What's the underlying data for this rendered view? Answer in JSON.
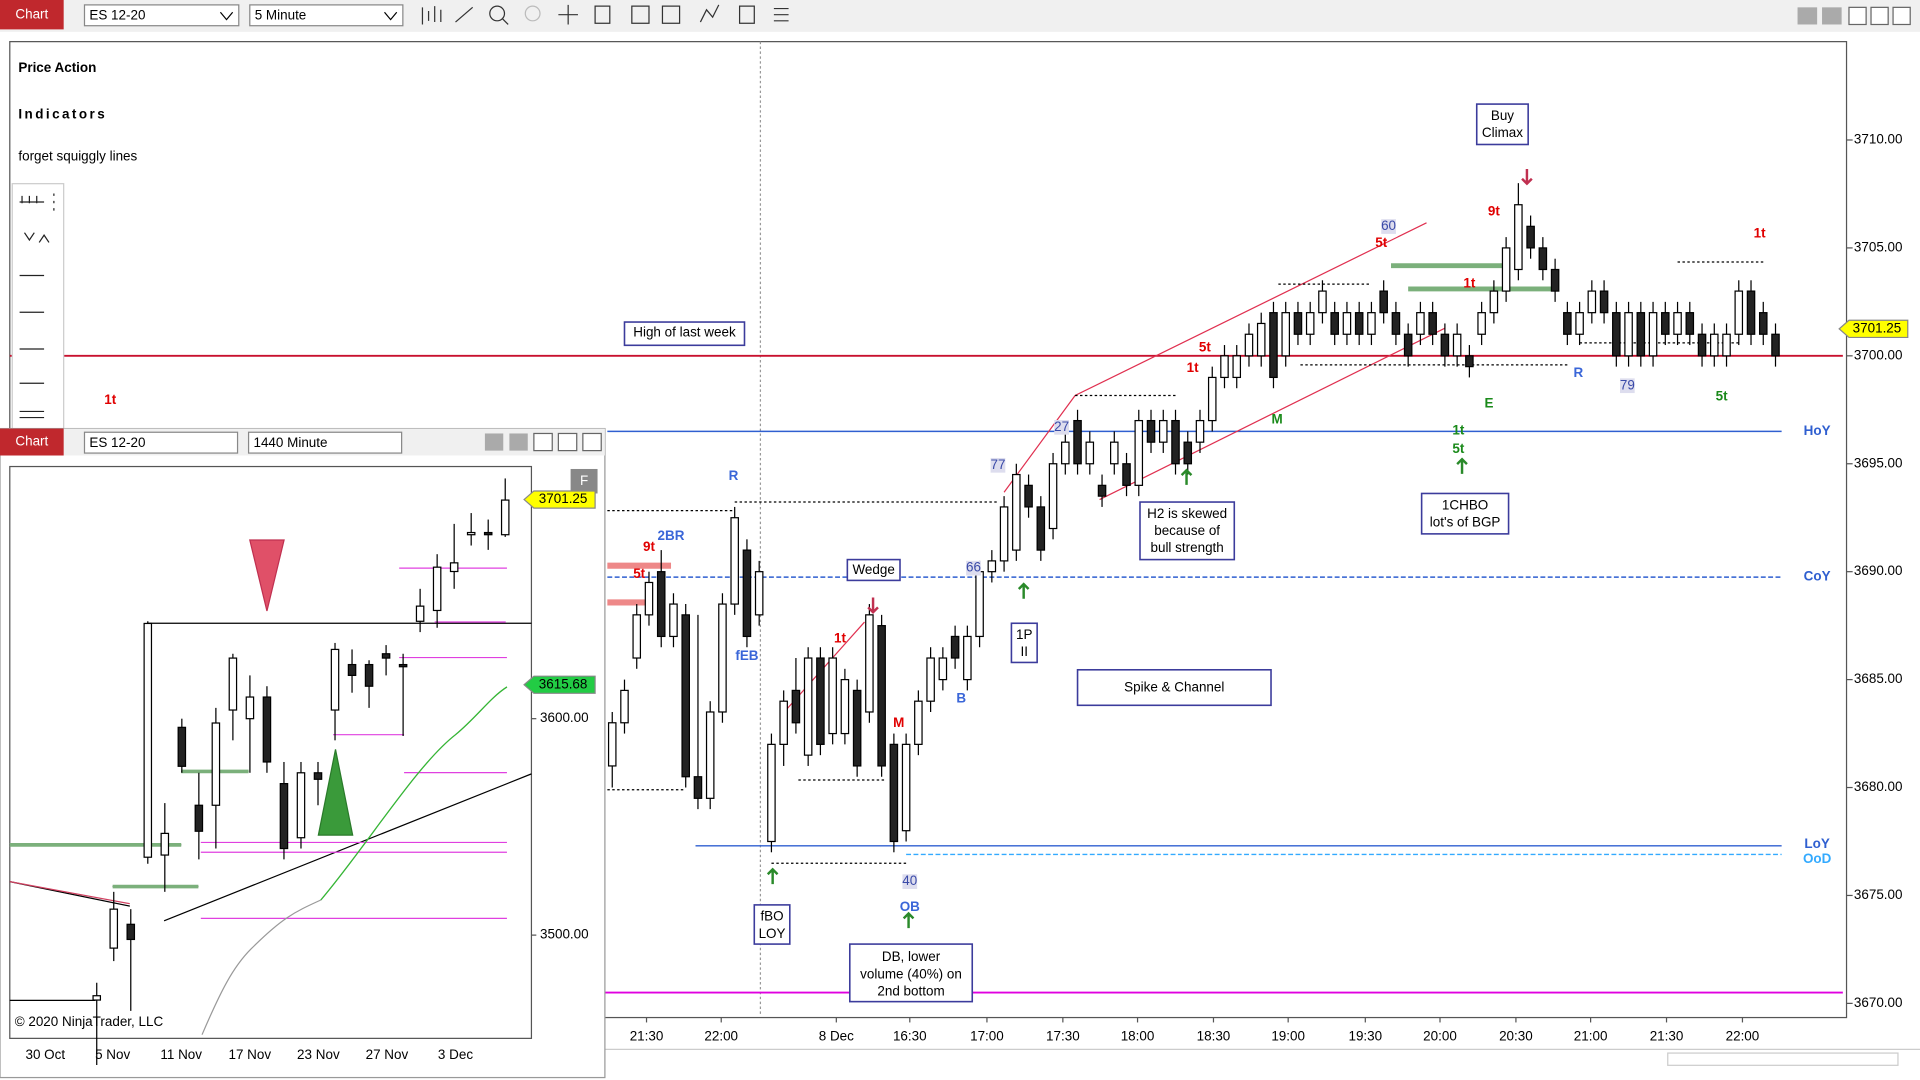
{
  "toolbar": {
    "tab": "Chart",
    "instrument": "ES 12-20",
    "interval": "5 Minute"
  },
  "branding": {
    "title_1": "Price Action",
    "title_2": "Indicators",
    "tagline": "forget squiggly lines"
  },
  "main_chart": {
    "type": "candlestick",
    "candles": [
      [
        3681,
        3683.5,
        3680,
        3683
      ],
      [
        3683,
        3685,
        3682.5,
        3684.5
      ],
      [
        3686,
        3688.5,
        3685.5,
        3688
      ],
      [
        3688,
        3690,
        3687.5,
        3689.5
      ],
      [
        3690,
        3691,
        3686.5,
        3687
      ],
      [
        3687,
        3689,
        3686.5,
        3688.5
      ],
      [
        3688,
        3688.5,
        3680,
        3680.5
      ],
      [
        3680.5,
        3688,
        3679,
        3679.5
      ],
      [
        3679.5,
        3684,
        3679,
        3683.5
      ],
      [
        3683.5,
        3689,
        3683,
        3688.5
      ],
      [
        3688.5,
        3693,
        3688,
        3692.5
      ],
      [
        3691,
        3691.5,
        3686.5,
        3687
      ],
      [
        3688,
        3690.5,
        3687.5,
        3690
      ],
      [
        3677.5,
        3682.5,
        3677,
        3682
      ],
      [
        3682,
        3684.5,
        3681,
        3684
      ],
      [
        3684.5,
        3686,
        3682.5,
        3683
      ],
      [
        3681.5,
        3686.5,
        3681,
        3686
      ],
      [
        3686,
        3686.5,
        3681.5,
        3682
      ],
      [
        3682.5,
        3686.5,
        3682,
        3686
      ],
      [
        3682.5,
        3685.5,
        3682,
        3685
      ],
      [
        3684.5,
        3685,
        3680.5,
        3681
      ],
      [
        3683.5,
        3688.5,
        3683,
        3688
      ],
      [
        3687.5,
        3688,
        3680.5,
        3681
      ],
      [
        3682,
        3682.5,
        3677,
        3677.5
      ],
      [
        3678,
        3682.5,
        3677.5,
        3682
      ],
      [
        3682,
        3684.5,
        3681.5,
        3684
      ],
      [
        3684,
        3686.5,
        3683.5,
        3686
      ],
      [
        3685,
        3686.5,
        3684.5,
        3686
      ],
      [
        3687,
        3687.5,
        3685.5,
        3686
      ],
      [
        3685,
        3687.5,
        3684.5,
        3687
      ],
      [
        3687,
        3690.5,
        3686.5,
        3690
      ],
      [
        3690,
        3691,
        3689.5,
        3690.5
      ],
      [
        3690.5,
        3693.5,
        3690,
        3693
      ],
      [
        3691,
        3695,
        3690.5,
        3694.5
      ],
      [
        3694,
        3694.5,
        3692.5,
        3693
      ],
      [
        3693,
        3693.5,
        3690.5,
        3691
      ],
      [
        3692,
        3695.5,
        3691.5,
        3695
      ],
      [
        3695,
        3696.5,
        3694.5,
        3696
      ],
      [
        3697,
        3697.5,
        3694.5,
        3695
      ],
      [
        3695,
        3696.5,
        3694.5,
        3696
      ],
      [
        3694,
        3694.5,
        3693,
        3693.5
      ],
      [
        3695,
        3696.5,
        3694.5,
        3696
      ],
      [
        3695,
        3695.5,
        3693.5,
        3694
      ],
      [
        3694,
        3697.5,
        3693.5,
        3697
      ],
      [
        3697,
        3697.5,
        3695.5,
        3696
      ],
      [
        3696,
        3697.5,
        3695.5,
        3697
      ],
      [
        3697,
        3697.5,
        3694.5,
        3695
      ],
      [
        3696,
        3696.5,
        3694.5,
        3695
      ],
      [
        3696,
        3697.5,
        3695.5,
        3697
      ],
      [
        3697,
        3699.5,
        3696.5,
        3699
      ],
      [
        3699,
        3700.5,
        3698.5,
        3700
      ],
      [
        3699,
        3700.5,
        3698.5,
        3700
      ],
      [
        3700,
        3701.5,
        3699.5,
        3701
      ],
      [
        3700,
        3702,
        3699.5,
        3701.5
      ],
      [
        3702,
        3702.5,
        3698.5,
        3699
      ],
      [
        3700,
        3702.5,
        3699.5,
        3702
      ],
      [
        3702,
        3702.5,
        3700.5,
        3701
      ],
      [
        3701,
        3702.5,
        3700.5,
        3702
      ],
      [
        3702,
        3703.5,
        3701.5,
        3703
      ],
      [
        3702,
        3702.5,
        3700.5,
        3701
      ],
      [
        3701,
        3702.5,
        3700.5,
        3702
      ],
      [
        3702,
        3702.5,
        3700.5,
        3701
      ],
      [
        3701,
        3702.5,
        3700.5,
        3702
      ],
      [
        3703,
        3703.5,
        3701.5,
        3702
      ],
      [
        3702,
        3702.5,
        3700.5,
        3701
      ],
      [
        3701,
        3701.5,
        3699.5,
        3700
      ],
      [
        3701,
        3702.5,
        3700.5,
        3702
      ],
      [
        3702,
        3702.5,
        3700.5,
        3701
      ],
      [
        3701,
        3701.5,
        3699.5,
        3700
      ],
      [
        3700,
        3701.5,
        3699.5,
        3701
      ],
      [
        3700,
        3700.5,
        3699,
        3699.5
      ],
      [
        3701,
        3702.5,
        3700.5,
        3702
      ],
      [
        3702,
        3703.5,
        3701.5,
        3703
      ],
      [
        3703,
        3705.5,
        3702.5,
        3705
      ],
      [
        3704,
        3708,
        3703.5,
        3707
      ],
      [
        3706,
        3706.5,
        3704.5,
        3705
      ],
      [
        3705,
        3705.5,
        3703.5,
        3704
      ],
      [
        3704,
        3704.5,
        3702.5,
        3703
      ],
      [
        3702,
        3702.5,
        3700.5,
        3701
      ],
      [
        3701,
        3702.5,
        3700.5,
        3702
      ],
      [
        3702,
        3703.5,
        3701.5,
        3703
      ],
      [
        3703,
        3703.5,
        3701.5,
        3702
      ],
      [
        3702,
        3702.5,
        3699.5,
        3700
      ],
      [
        3700,
        3702.5,
        3699.5,
        3702
      ],
      [
        3702,
        3702.5,
        3699.5,
        3700
      ],
      [
        3700,
        3702.5,
        3699.5,
        3702
      ],
      [
        3702,
        3702.5,
        3700.5,
        3701
      ],
      [
        3701,
        3702.5,
        3700.5,
        3702
      ],
      [
        3702,
        3702.5,
        3700.5,
        3701
      ],
      [
        3701,
        3701.5,
        3699.5,
        3700
      ],
      [
        3700,
        3701.5,
        3699.5,
        3701
      ],
      [
        3700,
        3701.5,
        3699.5,
        3701
      ],
      [
        3701,
        3703.5,
        3700.5,
        3703
      ],
      [
        3703,
        3703.5,
        3700.5,
        3701
      ],
      [
        3702,
        3702.5,
        3700.5,
        3701
      ],
      [
        3701,
        3701.5,
        3699.5,
        3700
      ]
    ],
    "ylim": [
      3669.4,
      3714.5
    ],
    "yticks": [
      {
        "value": 3670,
        "label": "3670.00"
      },
      {
        "value": 3675,
        "label": "3675.00"
      },
      {
        "value": 3680,
        "label": "3680.00"
      },
      {
        "value": 3685,
        "label": "3685.00"
      },
      {
        "value": 3690,
        "label": "3690.00"
      },
      {
        "value": 3695,
        "label": "3695.00"
      },
      {
        "value": 3700,
        "label": "3700.00"
      },
      {
        "value": 3705,
        "label": "3705.00"
      },
      {
        "value": 3710,
        "label": "3710.00"
      }
    ],
    "time_labels": [
      "21:30",
      "22:00",
      "8 Dec",
      "16:30",
      "17:00",
      "17:30",
      "18:00",
      "18:30",
      "19:00",
      "19:30",
      "20:00",
      "20:30",
      "21:00",
      "21:30",
      "22:00"
    ],
    "last_price": {
      "value": 3701.25,
      "label": "3701.25"
    },
    "levels": [
      {
        "value": 3700,
        "color": "#c8102e"
      },
      {
        "name": "HoY",
        "value": 3696.5,
        "color": "#2f5fd0"
      },
      {
        "name": "CoY",
        "value": 3689.75,
        "color": "#2f5fd0",
        "dashed": true
      },
      {
        "name": "LoY",
        "value": 3677.3,
        "color": "#2f5fd0"
      },
      {
        "name": "OoD",
        "value": 3676.9,
        "color": "#33aaff",
        "dashed": true
      },
      {
        "value": 3670.5,
        "color": "#e000e0"
      }
    ],
    "annotations": {
      "high_last_week": "High of last week",
      "buy_climax": [
        "Buy",
        "Climax"
      ],
      "h2_note": [
        "H2 is skewed",
        "because of",
        "bull strength"
      ],
      "chbo_note": [
        "1CHBO",
        "lot's of BGP"
      ],
      "wedge": "Wedge",
      "one_p": [
        "1P",
        "II"
      ],
      "fbo": [
        "fBO",
        "LOY"
      ],
      "db_note": [
        "DB, lower",
        "volume (40%) on",
        "2nd bottom"
      ],
      "spike_channel": "Spike & Channel",
      "blue_tags": [
        "R",
        "2BR",
        "fEB",
        "B",
        "OB",
        "R"
      ],
      "red_tags": [
        "1t",
        "9t",
        "5t",
        "1t",
        "5t",
        "9t",
        "1t",
        "1t",
        "5t",
        "1t",
        "M"
      ],
      "green_tags": [
        "1t",
        "5t",
        "5t",
        "M",
        "E"
      ],
      "badges": [
        "60",
        "27",
        "77",
        "66",
        "40",
        "79"
      ]
    }
  },
  "daily_chart": {
    "type": "candlestick",
    "toolbar": {
      "tab": "Chart",
      "instrument": "ES 12-20",
      "interval": "1440 Minute"
    },
    "badge": "F",
    "candles": [
      [
        3470,
        3478,
        3440,
        3472
      ],
      [
        3494,
        3520,
        3488,
        3512
      ],
      [
        3505,
        3512,
        3465,
        3498
      ],
      [
        3536,
        3645,
        3533,
        3644
      ],
      [
        3537,
        3561,
        3520,
        3547
      ],
      [
        3596,
        3600,
        3575,
        3578
      ],
      [
        3560,
        3575,
        3535,
        3548
      ],
      [
        3560,
        3605,
        3540,
        3598
      ],
      [
        3604,
        3630,
        3590,
        3628
      ],
      [
        3600,
        3620,
        3575,
        3610
      ],
      [
        3610,
        3615,
        3575,
        3580
      ],
      [
        3570,
        3580,
        3535,
        3540
      ],
      [
        3545,
        3580,
        3540,
        3575
      ],
      [
        3575,
        3580,
        3560,
        3572
      ],
      [
        3604,
        3635,
        3590,
        3632
      ],
      [
        3625,
        3632,
        3612,
        3620
      ],
      [
        3625,
        3627,
        3605,
        3615
      ],
      [
        3630,
        3634,
        3620,
        3628
      ],
      [
        3625,
        3630,
        3592,
        3624
      ],
      [
        3645,
        3660,
        3640,
        3652
      ],
      [
        3650,
        3676,
        3642,
        3670
      ],
      [
        3668,
        3690,
        3660,
        3672
      ],
      [
        3685,
        3695,
        3680,
        3686
      ],
      [
        3686,
        3692,
        3678,
        3685
      ],
      [
        3685,
        3711,
        3684,
        3701
      ]
    ],
    "ylim": [
      3452.3,
      3716.5
    ],
    "yticks": [
      {
        "value": 3500,
        "label": "3500.00"
      },
      {
        "value": 3600,
        "label": "3600.00"
      }
    ],
    "date_labels": [
      "30 Oct",
      "5 Nov",
      "11 Nov",
      "17 Nov",
      "23 Nov",
      "27 Nov",
      "3 Dec"
    ],
    "last_price": {
      "value": 3701.25,
      "label": "3701.25"
    },
    "ma_price": {
      "value": 3615.68,
      "label": "3615.68"
    },
    "copyright": "© 2020 NinjaTrader, LLC"
  }
}
